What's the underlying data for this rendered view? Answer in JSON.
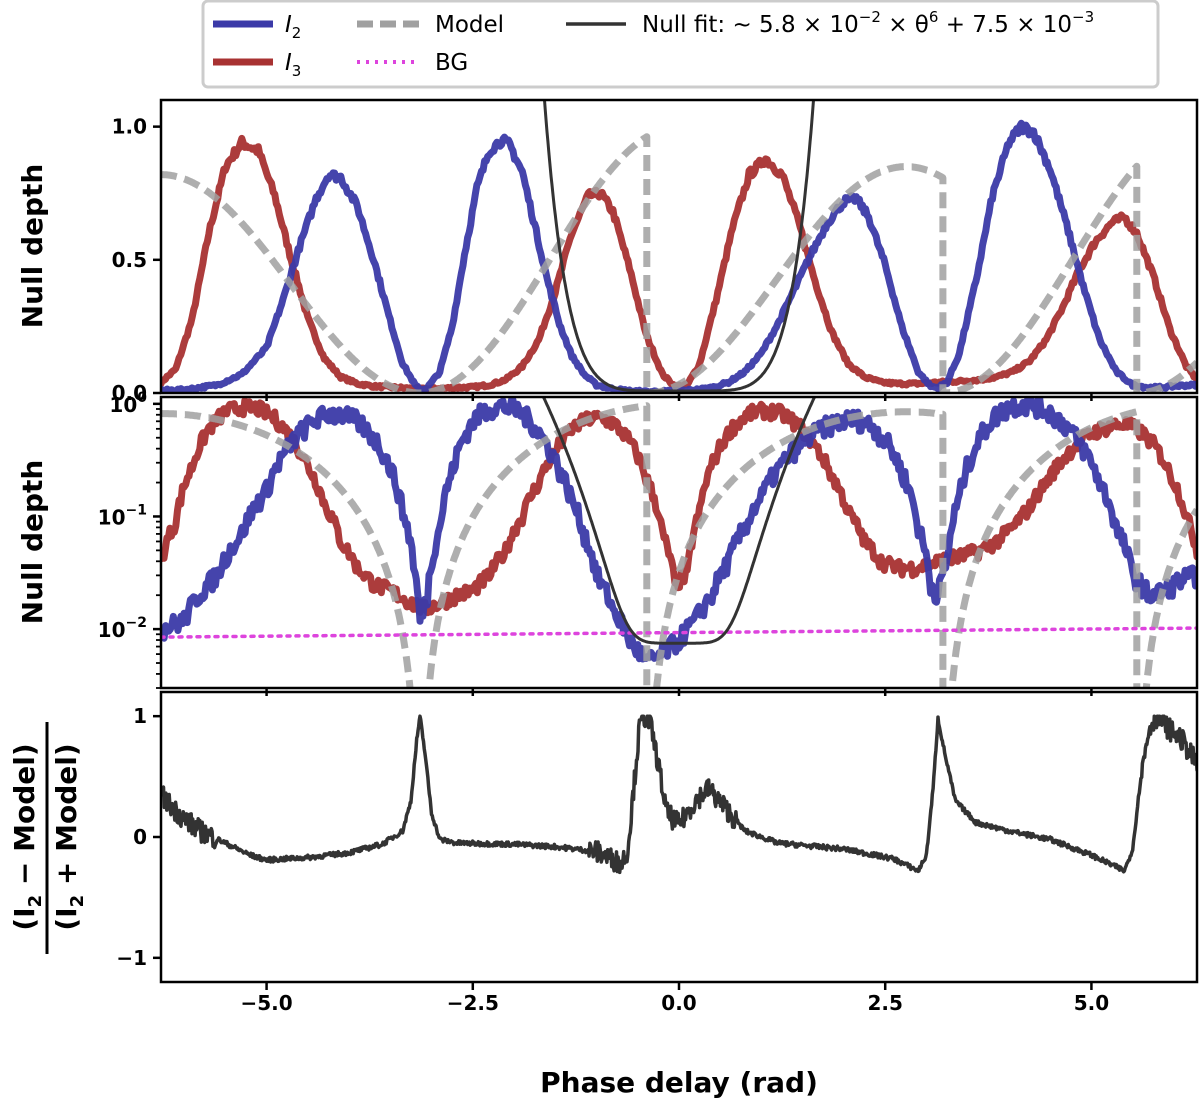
{
  "chart_data": {
    "type": "line",
    "xlabel": "Phase delay (rad)",
    "xlim": [
      -6.28,
      6.28
    ],
    "xticks": [
      -5.0,
      -2.5,
      0.0,
      2.5,
      5.0
    ],
    "xtick_labels": [
      "−5.0",
      "−2.5",
      "0.0",
      "2.5",
      "5.0"
    ],
    "legend": {
      "placement": "top-center",
      "entries": [
        {
          "key": "I2",
          "symbol": "I",
          "sub": "2",
          "style": "solid-thick",
          "color": "#3b3aa8"
        },
        {
          "key": "I3",
          "symbol": "I",
          "sub": "3",
          "style": "solid-thick",
          "color": "#a83232"
        },
        {
          "key": "model",
          "label": "Model",
          "style": "dashed",
          "color": "#a0a0a0"
        },
        {
          "key": "bg",
          "label": "BG",
          "style": "dotted",
          "color": "#dd44dd"
        },
        {
          "key": "nullfit",
          "label_prefix": "Null fit:  ~ 5.8 × 10",
          "label_exp1": "−2",
          "label_mid": " × θ",
          "label_exp2": "6",
          "label_tail": " + 7.5 × 10",
          "label_exp3": "−3",
          "style": "solid",
          "color": "#333333"
        }
      ]
    },
    "panels": [
      {
        "id": "linear",
        "ylabel": "Null depth",
        "yscale": "linear",
        "ylim": [
          0,
          1.1
        ],
        "yticks": [
          0.0,
          0.5,
          1.0
        ],
        "ytick_labels": [
          "0.0",
          "0.5",
          "1.0"
        ]
      },
      {
        "id": "log",
        "ylabel": "Null depth",
        "yscale": "log",
        "ylim": [
          0.003,
          1.15
        ],
        "yticks": [
          0.01,
          0.1,
          1.0
        ],
        "ytick_labels": [
          {
            "base": "10",
            "exp": "−2"
          },
          {
            "base": "10",
            "exp": "−1"
          },
          {
            "base": "10",
            "exp": "0"
          }
        ]
      },
      {
        "id": "residual",
        "ylabel_num": "(I",
        "ylabel_num_sub": "2",
        "ylabel_num_tail": " − Model)",
        "ylabel_den": "(I",
        "ylabel_den_sub": "2",
        "ylabel_den_tail": " + Model)",
        "yscale": "linear",
        "ylim": [
          -1.2,
          1.2
        ],
        "yticks": [
          -1,
          0,
          1
        ],
        "ytick_labels": [
          "−1",
          "0",
          "1"
        ]
      }
    ],
    "series": [
      {
        "name": "I2",
        "color": "#3b3aa8",
        "points": [
          [
            -6.28,
            0.01
          ],
          [
            -6.0,
            0.012
          ],
          [
            -5.6,
            0.03
          ],
          [
            -5.3,
            0.07
          ],
          [
            -5.0,
            0.17
          ],
          [
            -4.8,
            0.35
          ],
          [
            -4.6,
            0.55
          ],
          [
            -4.4,
            0.73
          ],
          [
            -4.25,
            0.82
          ],
          [
            -4.1,
            0.81
          ],
          [
            -3.9,
            0.7
          ],
          [
            -3.7,
            0.5
          ],
          [
            -3.5,
            0.27
          ],
          [
            -3.35,
            0.11
          ],
          [
            -3.2,
            0.03
          ],
          [
            -3.14,
            0.012
          ],
          [
            -3.05,
            0.02
          ],
          [
            -2.9,
            0.08
          ],
          [
            -2.75,
            0.25
          ],
          [
            -2.6,
            0.52
          ],
          [
            -2.45,
            0.77
          ],
          [
            -2.3,
            0.91
          ],
          [
            -2.15,
            0.95
          ],
          [
            -2.05,
            0.93
          ],
          [
            -1.9,
            0.83
          ],
          [
            -1.75,
            0.63
          ],
          [
            -1.6,
            0.43
          ],
          [
            -1.45,
            0.26
          ],
          [
            -1.3,
            0.14
          ],
          [
            -1.15,
            0.07
          ],
          [
            -1.0,
            0.03
          ],
          [
            -0.8,
            0.015
          ],
          [
            -0.6,
            0.008
          ],
          [
            -0.4,
            0.005
          ],
          [
            -0.2,
            0.006
          ],
          [
            0.0,
            0.008
          ],
          [
            0.2,
            0.012
          ],
          [
            0.4,
            0.02
          ],
          [
            0.6,
            0.04
          ],
          [
            0.8,
            0.08
          ],
          [
            1.0,
            0.15
          ],
          [
            1.2,
            0.26
          ],
          [
            1.4,
            0.39
          ],
          [
            1.6,
            0.52
          ],
          [
            1.8,
            0.64
          ],
          [
            2.0,
            0.72
          ],
          [
            2.15,
            0.73
          ],
          [
            2.3,
            0.66
          ],
          [
            2.5,
            0.48
          ],
          [
            2.7,
            0.25
          ],
          [
            2.9,
            0.08
          ],
          [
            3.05,
            0.025
          ],
          [
            3.14,
            0.02
          ],
          [
            3.25,
            0.04
          ],
          [
            3.4,
            0.15
          ],
          [
            3.6,
            0.42
          ],
          [
            3.8,
            0.74
          ],
          [
            4.0,
            0.94
          ],
          [
            4.15,
            1.0
          ],
          [
            4.3,
            0.98
          ],
          [
            4.5,
            0.84
          ],
          [
            4.7,
            0.63
          ],
          [
            4.9,
            0.4
          ],
          [
            5.1,
            0.2
          ],
          [
            5.3,
            0.08
          ],
          [
            5.5,
            0.03
          ],
          [
            5.7,
            0.02
          ],
          [
            5.9,
            0.022
          ],
          [
            6.1,
            0.028
          ],
          [
            6.28,
            0.03
          ]
        ]
      },
      {
        "name": "I3",
        "color": "#a83232",
        "points": [
          [
            -6.28,
            0.04
          ],
          [
            -6.1,
            0.09
          ],
          [
            -5.9,
            0.28
          ],
          [
            -5.7,
            0.6
          ],
          [
            -5.5,
            0.85
          ],
          [
            -5.3,
            0.94
          ],
          [
            -5.1,
            0.91
          ],
          [
            -4.9,
            0.74
          ],
          [
            -4.7,
            0.5
          ],
          [
            -4.5,
            0.28
          ],
          [
            -4.3,
            0.13
          ],
          [
            -4.1,
            0.06
          ],
          [
            -3.9,
            0.035
          ],
          [
            -3.7,
            0.025
          ],
          [
            -3.5,
            0.022
          ],
          [
            -3.3,
            0.018
          ],
          [
            -3.1,
            0.015
          ],
          [
            -2.9,
            0.017
          ],
          [
            -2.7,
            0.02
          ],
          [
            -2.5,
            0.022
          ],
          [
            -2.3,
            0.03
          ],
          [
            -2.1,
            0.05
          ],
          [
            -1.9,
            0.1
          ],
          [
            -1.7,
            0.2
          ],
          [
            -1.5,
            0.38
          ],
          [
            -1.3,
            0.6
          ],
          [
            -1.1,
            0.74
          ],
          [
            -0.95,
            0.75
          ],
          [
            -0.8,
            0.68
          ],
          [
            -0.6,
            0.47
          ],
          [
            -0.4,
            0.22
          ],
          [
            -0.2,
            0.07
          ],
          [
            -0.05,
            0.025
          ],
          [
            0.1,
            0.03
          ],
          [
            0.25,
            0.11
          ],
          [
            0.45,
            0.35
          ],
          [
            0.65,
            0.62
          ],
          [
            0.85,
            0.82
          ],
          [
            1.05,
            0.88
          ],
          [
            1.25,
            0.82
          ],
          [
            1.45,
            0.64
          ],
          [
            1.65,
            0.42
          ],
          [
            1.85,
            0.23
          ],
          [
            2.05,
            0.11
          ],
          [
            2.25,
            0.06
          ],
          [
            2.45,
            0.04
          ],
          [
            2.65,
            0.035
          ],
          [
            2.85,
            0.035
          ],
          [
            3.05,
            0.038
          ],
          [
            3.25,
            0.042
          ],
          [
            3.45,
            0.045
          ],
          [
            3.65,
            0.05
          ],
          [
            3.85,
            0.06
          ],
          [
            4.05,
            0.08
          ],
          [
            4.25,
            0.12
          ],
          [
            4.45,
            0.2
          ],
          [
            4.65,
            0.32
          ],
          [
            4.85,
            0.46
          ],
          [
            5.05,
            0.57
          ],
          [
            5.25,
            0.64
          ],
          [
            5.4,
            0.66
          ],
          [
            5.55,
            0.6
          ],
          [
            5.75,
            0.44
          ],
          [
            5.95,
            0.24
          ],
          [
            6.15,
            0.1
          ],
          [
            6.28,
            0.05
          ]
        ]
      },
      {
        "name": "Model",
        "color": "#a0a0a0",
        "formula": "0.5 * amp * (1 - cos(x - phi))",
        "segments": [
          {
            "from": -6.28,
            "to": -3.14,
            "amp": 0.82,
            "phi": -3.14
          },
          {
            "from": -3.14,
            "to": -0.39,
            "amp": 1.0,
            "phi": -3.14
          },
          {
            "from": -0.39,
            "to": 3.2,
            "amp": 0.85,
            "phi": -0.39
          },
          {
            "from": 3.2,
            "to": 5.55,
            "amp": 1.0,
            "phi": 3.2
          },
          {
            "from": 5.55,
            "to": 6.28,
            "amp": 0.9,
            "phi": 5.55
          }
        ]
      },
      {
        "name": "BG",
        "color": "#dd44dd",
        "points": [
          [
            -6.28,
            0.0085
          ],
          [
            6.28,
            0.0102
          ]
        ],
        "panels": [
          "log"
        ]
      },
      {
        "name": "Null fit",
        "color": "#333333",
        "coef": 0.058,
        "power": 6,
        "offset": 0.0075,
        "center": 0.0
      },
      {
        "name": "Residual",
        "color": "#333333",
        "panel": "residual",
        "points": [
          [
            -6.28,
            0.35
          ],
          [
            -6.15,
            0.25
          ],
          [
            -6.0,
            0.15
          ],
          [
            -5.8,
            0.05
          ],
          [
            -5.5,
            -0.05
          ],
          [
            -5.2,
            -0.15
          ],
          [
            -5.0,
            -0.19
          ],
          [
            -4.5,
            -0.17
          ],
          [
            -4.0,
            -0.13
          ],
          [
            -3.6,
            -0.06
          ],
          [
            -3.35,
            0.05
          ],
          [
            -3.25,
            0.3
          ],
          [
            -3.18,
            0.8
          ],
          [
            -3.14,
            1.0
          ],
          [
            -3.08,
            0.7
          ],
          [
            -3.0,
            0.2
          ],
          [
            -2.9,
            -0.02
          ],
          [
            -2.7,
            -0.05
          ],
          [
            -2.0,
            -0.06
          ],
          [
            -1.5,
            -0.08
          ],
          [
            -1.0,
            -0.12
          ],
          [
            -0.7,
            -0.22
          ],
          [
            -0.62,
            -0.1
          ],
          [
            -0.55,
            0.4
          ],
          [
            -0.48,
            0.9
          ],
          [
            -0.43,
            1.0
          ],
          [
            -0.35,
            0.95
          ],
          [
            -0.25,
            0.6
          ],
          [
            -0.15,
            0.2
          ],
          [
            0.0,
            0.1
          ],
          [
            0.2,
            0.3
          ],
          [
            0.35,
            0.4
          ],
          [
            0.55,
            0.25
          ],
          [
            0.8,
            0.05
          ],
          [
            1.2,
            -0.05
          ],
          [
            2.0,
            -0.1
          ],
          [
            2.6,
            -0.18
          ],
          [
            2.9,
            -0.28
          ],
          [
            3.0,
            -0.15
          ],
          [
            3.08,
            0.4
          ],
          [
            3.14,
            0.98
          ],
          [
            3.22,
            0.7
          ],
          [
            3.35,
            0.3
          ],
          [
            3.6,
            0.12
          ],
          [
            4.0,
            0.05
          ],
          [
            4.5,
            -0.02
          ],
          [
            5.0,
            -0.15
          ],
          [
            5.4,
            -0.28
          ],
          [
            5.5,
            -0.1
          ],
          [
            5.6,
            0.5
          ],
          [
            5.7,
            0.9
          ],
          [
            5.78,
            1.0
          ],
          [
            5.9,
            0.92
          ],
          [
            6.1,
            0.8
          ],
          [
            6.28,
            0.6
          ]
        ]
      }
    ]
  }
}
